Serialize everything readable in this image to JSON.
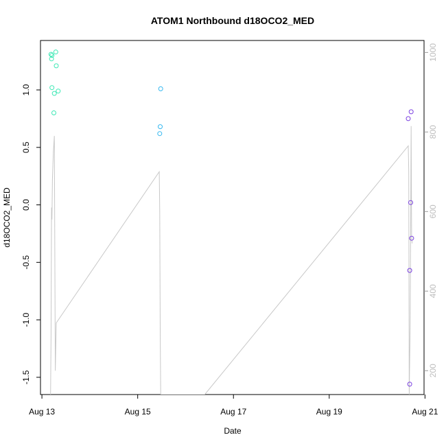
{
  "chart_data": {
    "type": "scatter",
    "title": "ATOM1 Northbound d18OCO2_MED",
    "xlabel": "Date",
    "ylabel": "d18OCO2_MED",
    "x_ticks": [
      "Aug 13",
      "Aug 15",
      "Aug 17",
      "Aug 19",
      "Aug 21"
    ],
    "x_range_days": [
      12.97,
      20.98
    ],
    "ylim": [
      -1.65,
      1.43
    ],
    "y_ticks": [
      -1.5,
      -1.0,
      -0.5,
      0.0,
      0.5,
      1.0
    ],
    "y_tick_labels": [
      "-1.5",
      "-1.0",
      "-0.5",
      "0.0",
      "0.5",
      "1.0"
    ],
    "y2_ticks": [
      200,
      400,
      600,
      800,
      1000
    ],
    "y2_tick_labels": [
      "200",
      "400",
      "600",
      "800",
      "1000"
    ],
    "y2lim": [
      1030,
      140
    ],
    "grid": false,
    "colors": {
      "green": "#3ce8b4",
      "blue": "#35b8f0",
      "purple": "#7a3fe0",
      "pressure": "#c8c8c8"
    },
    "points": [
      {
        "x": 13.19,
        "y": 1.31,
        "color": "green"
      },
      {
        "x": 13.21,
        "y": 1.3,
        "color": "green"
      },
      {
        "x": 13.2,
        "y": 1.27,
        "color": "green"
      },
      {
        "x": 13.21,
        "y": 1.02,
        "color": "green"
      },
      {
        "x": 13.25,
        "y": 0.8,
        "color": "green"
      },
      {
        "x": 13.26,
        "y": 0.97,
        "color": "green"
      },
      {
        "x": 13.29,
        "y": 1.33,
        "color": "green"
      },
      {
        "x": 13.3,
        "y": 1.21,
        "color": "green"
      },
      {
        "x": 13.34,
        "y": 0.99,
        "color": "green"
      },
      {
        "x": 15.48,
        "y": 1.01,
        "color": "blue"
      },
      {
        "x": 15.47,
        "y": 0.68,
        "color": "blue"
      },
      {
        "x": 15.46,
        "y": 0.62,
        "color": "blue"
      },
      {
        "x": 20.65,
        "y": 0.75,
        "color": "purple"
      },
      {
        "x": 20.71,
        "y": 0.81,
        "color": "purple"
      },
      {
        "x": 20.7,
        "y": 0.02,
        "color": "purple"
      },
      {
        "x": 20.72,
        "y": -0.29,
        "color": "purple"
      },
      {
        "x": 20.68,
        "y": -0.57,
        "color": "purple"
      },
      {
        "x": 20.68,
        "y": -1.56,
        "color": "purple"
      }
    ],
    "pressure_series": {
      "x": [
        13.18,
        13.19,
        13.2,
        13.21,
        13.22,
        13.24,
        13.26,
        13.28,
        13.3,
        15.45,
        15.46,
        15.47,
        15.48,
        16.4,
        20.65,
        20.66,
        20.67,
        20.69,
        20.71,
        20.72,
        20.73
      ],
      "y": [
        140,
        290,
        610,
        580,
        680,
        750,
        790,
        200,
        320,
        700,
        600,
        300,
        140,
        140,
        765,
        700,
        140,
        320,
        815,
        540,
        520
      ]
    }
  }
}
